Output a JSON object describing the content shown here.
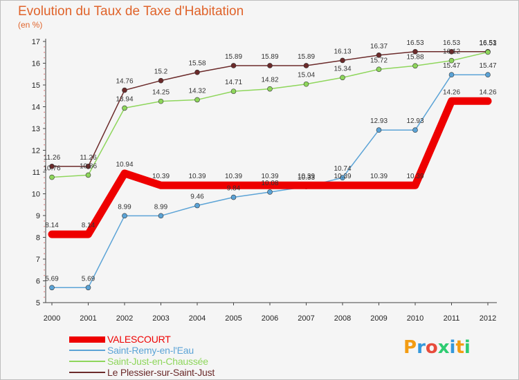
{
  "chart_data": {
    "type": "line",
    "title": "Evolution du Taux de Taxe d'Habitation",
    "unit_label": "(en %)",
    "categories": [
      "2000",
      "2001",
      "2002",
      "2003",
      "2004",
      "2005",
      "2006",
      "2007",
      "2008",
      "2009",
      "2010",
      "2011",
      "2012"
    ],
    "ylim": [
      5,
      17
    ],
    "yticks": [
      5,
      6,
      7,
      8,
      9,
      10,
      11,
      12,
      13,
      14,
      15,
      16,
      17
    ],
    "grid": false,
    "legend_position": "bottom-left",
    "series": [
      {
        "name": "VALESCOURT",
        "color": "#ee0000",
        "thick": true,
        "values": [
          8.14,
          8.14,
          10.94,
          10.39,
          10.39,
          10.39,
          10.39,
          10.39,
          10.39,
          10.39,
          10.39,
          14.26,
          14.26
        ],
        "labels": [
          "8.14",
          "8.14",
          "10.94",
          "10.39",
          "10.39",
          "10.39",
          "10.39",
          "10.39",
          "10.39",
          "10.39",
          "10.39",
          "14.26",
          "14.26"
        ]
      },
      {
        "name": "Saint-Remy-en-l'Eau",
        "color": "#5ba3d6",
        "thick": false,
        "values": [
          5.69,
          5.69,
          8.99,
          8.99,
          9.46,
          9.84,
          10.08,
          10.33,
          10.74,
          12.93,
          12.93,
          15.47,
          15.47
        ],
        "labels": [
          "5.69",
          "5.69",
          "8.99",
          "8.99",
          "9.46",
          "9.84",
          "10.08",
          "10.33",
          "10.74",
          "12.93",
          "12.93",
          "15.47",
          "15.47"
        ]
      },
      {
        "name": "Saint-Just-en-Chaussée",
        "color": "#8ed65b",
        "thick": false,
        "values": [
          10.76,
          10.86,
          13.94,
          14.25,
          14.32,
          14.71,
          14.82,
          15.04,
          15.34,
          15.72,
          15.88,
          16.12,
          16.51
        ],
        "labels": [
          "10.76",
          "10.86",
          "13.94",
          "14.25",
          "14.32",
          "14.71",
          "14.82",
          "15.04",
          "15.34",
          "15.72",
          "15.88",
          "16.12",
          "16.51"
        ]
      },
      {
        "name": "Le Plessier-sur-Saint-Just",
        "color": "#6b2a2a",
        "thick": false,
        "values": [
          11.26,
          11.26,
          14.76,
          15.2,
          15.58,
          15.89,
          15.89,
          15.89,
          16.13,
          16.37,
          16.53,
          16.53,
          16.53
        ],
        "labels": [
          "11.26",
          "11.26",
          "14.76",
          "15.2",
          "15.58",
          "15.89",
          "15.89",
          "15.89",
          "16.13",
          "16.37",
          "16.53",
          "16.53",
          "16.53"
        ]
      }
    ]
  },
  "logo": {
    "text": "Proxiti",
    "letters": [
      "P",
      "r",
      "o",
      "x",
      "i",
      "t",
      "i"
    ],
    "colors": [
      "#f39c12",
      "#3498db",
      "#e74c3c",
      "#2ecc71",
      "#3498db",
      "#f39c12",
      "#2ecc71"
    ]
  }
}
